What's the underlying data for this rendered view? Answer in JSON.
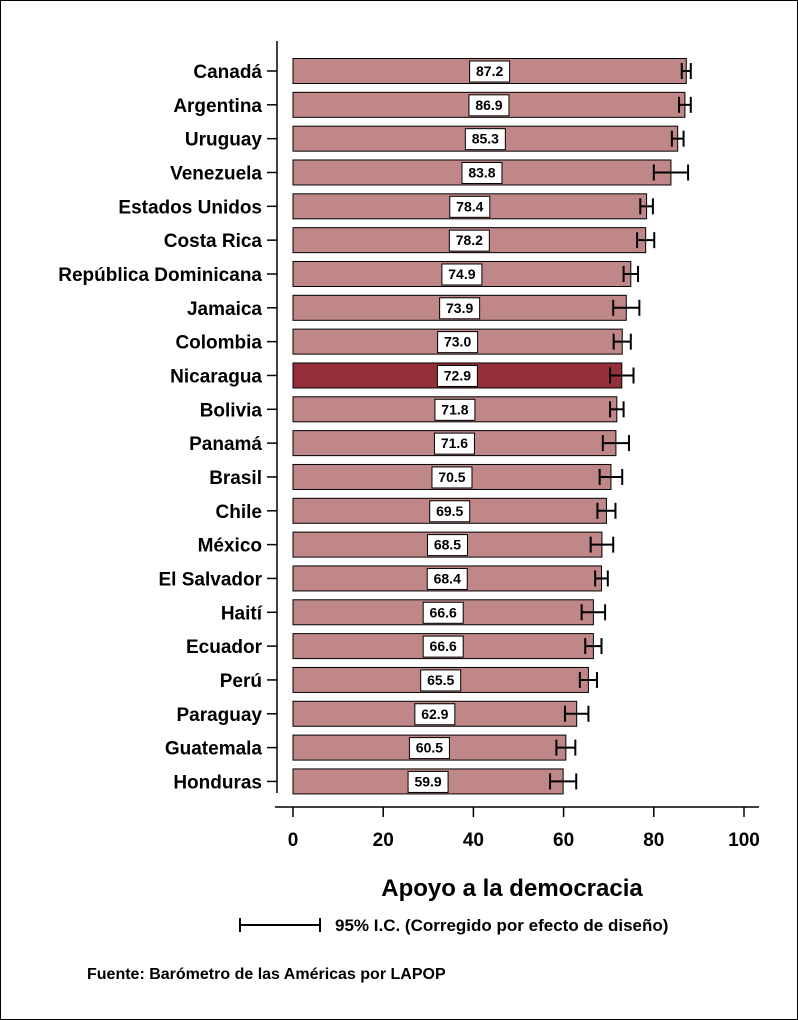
{
  "chart_data": {
    "type": "bar",
    "orientation": "horizontal",
    "categories": [
      "Canadá",
      "Argentina",
      "Uruguay",
      "Venezuela",
      "Estados Unidos",
      "Costa Rica",
      "República Dominicana",
      "Jamaica",
      "Colombia",
      "Nicaragua",
      "Bolivia",
      "Panamá",
      "Brasil",
      "Chile",
      "México",
      "El Salvador",
      "Haití",
      "Ecuador",
      "Perú",
      "Paraguay",
      "Guatemala",
      "Honduras"
    ],
    "values": [
      87.2,
      86.9,
      85.3,
      83.8,
      78.4,
      78.2,
      74.9,
      73.9,
      73.0,
      72.9,
      71.8,
      71.6,
      70.5,
      69.5,
      68.5,
      68.4,
      66.6,
      66.6,
      65.5,
      62.9,
      60.5,
      59.9
    ],
    "value_labels": [
      "87.2",
      "86.9",
      "85.3",
      "83.8",
      "78.4",
      "78.2",
      "74.9",
      "73.9",
      "73.0",
      "72.9",
      "71.8",
      "71.6",
      "70.5",
      "69.5",
      "68.5",
      "68.4",
      "66.6",
      "66.6",
      "65.5",
      "62.9",
      "60.5",
      "59.9"
    ],
    "ci_low": [
      86.2,
      85.6,
      84.0,
      80.0,
      77.0,
      76.3,
      73.3,
      71.0,
      71.1,
      70.3,
      70.3,
      68.7,
      68.0,
      67.5,
      66.0,
      67.0,
      64.0,
      64.8,
      63.6,
      60.3,
      58.4,
      57.0
    ],
    "ci_high": [
      88.2,
      88.2,
      86.6,
      87.6,
      79.8,
      80.1,
      76.5,
      76.8,
      74.9,
      75.5,
      73.3,
      74.5,
      73.0,
      71.5,
      71.0,
      69.8,
      69.2,
      68.4,
      67.4,
      65.5,
      62.6,
      62.8
    ],
    "highlight": "Nicaragua",
    "xlabel": "Apoyo a la democracia",
    "ylabel": "",
    "xlim": [
      0,
      100
    ],
    "xticks": [
      "0",
      "20",
      "40",
      "60",
      "80",
      "100"
    ],
    "xtick_values": [
      0,
      20,
      40,
      60,
      80,
      100
    ],
    "legend": "95% I.C. (Corregido por efecto de diseño)",
    "source": "Fuente: Barómetro de las Américas por LAPOP",
    "grid": false,
    "colors": {
      "bar": "#bf8787",
      "highlight": "#943039",
      "outline": "#000000",
      "label_box": "#ffffff"
    }
  }
}
